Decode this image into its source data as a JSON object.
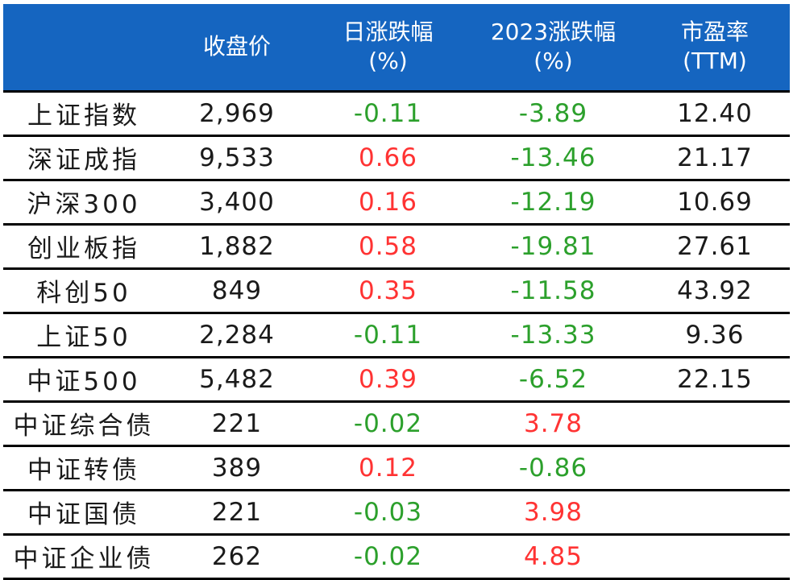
{
  "colors": {
    "header_bg": "#1565c0",
    "header_text": "#ffffff",
    "positive": "#ff3333",
    "negative": "#2ca02c",
    "text": "#1a1a1a"
  },
  "header": {
    "name": "",
    "close": "收盘价",
    "daily_change_line1": "日涨跌幅",
    "daily_change_line2": "(%)",
    "ytd_change_line1": "2023涨跌幅",
    "ytd_change_line2": "(%)",
    "pe_line1": "市盈率",
    "pe_line2": "(TTM)"
  },
  "rows": [
    {
      "name": "上证指数",
      "close": "2,969",
      "daily": "-0.11",
      "daily_sign": "neg",
      "ytd": "-3.89",
      "ytd_sign": "neg",
      "pe": "12.40"
    },
    {
      "name": "深证成指",
      "close": "9,533",
      "daily": "0.66",
      "daily_sign": "pos",
      "ytd": "-13.46",
      "ytd_sign": "neg",
      "pe": "21.17"
    },
    {
      "name": "沪深300",
      "close": "3,400",
      "daily": "0.16",
      "daily_sign": "pos",
      "ytd": "-12.19",
      "ytd_sign": "neg",
      "pe": "10.69"
    },
    {
      "name": "创业板指",
      "close": "1,882",
      "daily": "0.58",
      "daily_sign": "pos",
      "ytd": "-19.81",
      "ytd_sign": "neg",
      "pe": "27.61"
    },
    {
      "name": "科创50",
      "close": "849",
      "daily": "0.35",
      "daily_sign": "pos",
      "ytd": "-11.58",
      "ytd_sign": "neg",
      "pe": "43.92"
    },
    {
      "name": "上证50",
      "close": "2,284",
      "daily": "-0.11",
      "daily_sign": "neg",
      "ytd": "-13.33",
      "ytd_sign": "neg",
      "pe": "9.36"
    },
    {
      "name": "中证500",
      "close": "5,482",
      "daily": "0.39",
      "daily_sign": "pos",
      "ytd": "-6.52",
      "ytd_sign": "neg",
      "pe": "22.15"
    },
    {
      "name": "中证综合债",
      "close": "221",
      "daily": "-0.02",
      "daily_sign": "neg",
      "ytd": "3.78",
      "ytd_sign": "pos",
      "pe": ""
    },
    {
      "name": "中证转债",
      "close": "389",
      "daily": "0.12",
      "daily_sign": "pos",
      "ytd": "-0.86",
      "ytd_sign": "neg",
      "pe": ""
    },
    {
      "name": "中证国债",
      "close": "221",
      "daily": "-0.03",
      "daily_sign": "neg",
      "ytd": "3.98",
      "ytd_sign": "pos",
      "pe": ""
    },
    {
      "name": "中证企业债",
      "close": "262",
      "daily": "-0.02",
      "daily_sign": "neg",
      "ytd": "4.85",
      "ytd_sign": "pos",
      "pe": ""
    }
  ]
}
